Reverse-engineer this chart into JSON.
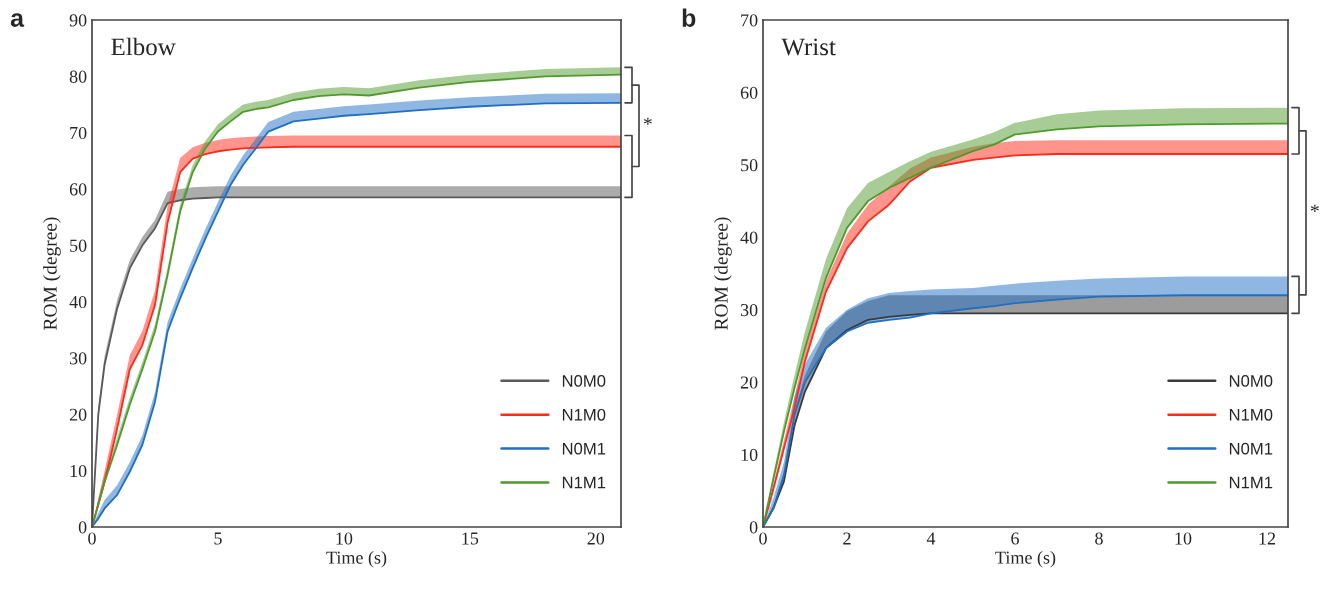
{
  "chart_data": [
    {
      "type": "line",
      "title": "a",
      "xlabel": "Time (s)",
      "ylabel": "ROM (degree)",
      "annotations": [
        "Elbow",
        "*"
      ],
      "xlim": [
        0,
        21
      ],
      "xticks": [
        0,
        5,
        10,
        15,
        20
      ],
      "ylim": [
        0,
        90
      ],
      "yticks": [
        0,
        10,
        20,
        30,
        40,
        50,
        60,
        70,
        80,
        90
      ],
      "legend": "bottom right",
      "grid": false,
      "x": [
        0,
        0.25,
        0.5,
        1,
        1.5,
        2,
        2.5,
        3,
        3.5,
        4,
        4.5,
        5,
        5.5,
        6,
        6.5,
        7,
        8,
        9,
        10,
        11,
        13,
        15,
        18,
        21
      ],
      "series": [
        {
          "name": "N0M0",
          "color": "#595959",
          "values": [
            0,
            20,
            28.8,
            38.8,
            45.9,
            50,
            53,
            57.5,
            58,
            58.3,
            58.4,
            58.5,
            58.5,
            58.5,
            58.5,
            58.5,
            58.5,
            58.5,
            58.5,
            58.5,
            58.5,
            58.5,
            58.5,
            58.5
          ],
          "lower": [
            0,
            20,
            28.8,
            38.8,
            45.9,
            50,
            53,
            57.5,
            58,
            58.3,
            58.4,
            58.5,
            58.5,
            58.5,
            58.5,
            58.5,
            58.5,
            58.5,
            58.5,
            58.5,
            58.5,
            58.5,
            58.5,
            58.5
          ],
          "upper": [
            0,
            21.5,
            30.3,
            40.3,
            47.4,
            51.5,
            54.5,
            59.5,
            60,
            60.3,
            60.4,
            60.5,
            60.5,
            60.5,
            60.5,
            60.5,
            60.5,
            60.5,
            60.5,
            60.5,
            60.5,
            60.5,
            60.5,
            60.5
          ]
        },
        {
          "name": "N1M0",
          "color": "#ff2a1a",
          "values": [
            0,
            4,
            8,
            17.5,
            28,
            32.3,
            39.4,
            54,
            63,
            65.4,
            66.2,
            66.7,
            67,
            67.2,
            67.3,
            67.4,
            67.5,
            67.5,
            67.5,
            67.5,
            67.5,
            67.5,
            67.5,
            67.5
          ],
          "lower": [
            0,
            4,
            8,
            17.5,
            28,
            32.3,
            39.4,
            54,
            63,
            65.4,
            66.2,
            66.7,
            67,
            67.2,
            67.3,
            67.4,
            67.5,
            67.5,
            67.5,
            67.5,
            67.5,
            67.5,
            67.5,
            67.5
          ],
          "upper": [
            0,
            5,
            10,
            20,
            30.5,
            34.8,
            42,
            57,
            65.5,
            67.4,
            68.2,
            68.7,
            69,
            69.2,
            69.3,
            69.4,
            69.5,
            69.5,
            69.5,
            69.5,
            69.5,
            69.5,
            69.5,
            69.5
          ]
        },
        {
          "name": "N0M1",
          "color": "#1f6fc4",
          "values": [
            0,
            1.5,
            3.3,
            5.7,
            9.8,
            14.6,
            22.2,
            34.7,
            40.6,
            46,
            51.2,
            56,
            60.7,
            64.3,
            67.2,
            70.2,
            72,
            72.5,
            73,
            73.3,
            74,
            74.6,
            75.2,
            75.3
          ],
          "lower": [
            0,
            1.5,
            3.3,
            5.7,
            9.8,
            14.6,
            22.2,
            34.7,
            40.6,
            46,
            51.2,
            56,
            60.7,
            64.3,
            67.2,
            70.2,
            72,
            72.5,
            73,
            73.3,
            74,
            74.6,
            75.2,
            75.3
          ],
          "upper": [
            0,
            2.5,
            4.8,
            7.4,
            11.5,
            16.3,
            23.9,
            36.4,
            42.3,
            47.7,
            52.9,
            57.7,
            62.4,
            66,
            68.9,
            71.9,
            73.7,
            74.2,
            74.7,
            75,
            75.7,
            76.3,
            76.9,
            77
          ]
        },
        {
          "name": "N1M1",
          "color": "#4f9a2c",
          "values": [
            0,
            4,
            8,
            14.6,
            21.7,
            28,
            34.7,
            44.7,
            56,
            63,
            67.2,
            70.2,
            72,
            73.7,
            74.2,
            74.5,
            75.8,
            76.5,
            76.8,
            76.6,
            78,
            79,
            80,
            80.3
          ],
          "lower": [
            0,
            4,
            8,
            14.6,
            21.7,
            28,
            34.7,
            44.7,
            56,
            63,
            67.2,
            70.2,
            72,
            73.7,
            74.2,
            74.5,
            75.8,
            76.5,
            76.8,
            76.6,
            78,
            79,
            80,
            80.3
          ],
          "upper": [
            0,
            5,
            9.3,
            15.9,
            23,
            29.3,
            36,
            46,
            57.3,
            64.3,
            68.5,
            71.5,
            73.3,
            75,
            75.5,
            75.8,
            77.1,
            77.8,
            78.1,
            77.9,
            79.3,
            80.3,
            81.3,
            81.6
          ]
        }
      ]
    },
    {
      "type": "line",
      "title": "b",
      "xlabel": "Time (s)",
      "ylabel": "ROM (degree)",
      "annotations": [
        "Wrist",
        "*"
      ],
      "xlim": [
        0,
        12.5
      ],
      "xticks": [
        0,
        2,
        4,
        6,
        8,
        10,
        12
      ],
      "ylim": [
        0,
        70
      ],
      "yticks": [
        0,
        10,
        20,
        30,
        40,
        50,
        60,
        70
      ],
      "legend": "bottom right",
      "grid": false,
      "x": [
        0,
        0.25,
        0.5,
        0.75,
        1,
        1.5,
        2,
        2.5,
        3,
        3.5,
        4,
        5,
        5.5,
        6,
        7,
        8,
        10,
        12.5
      ],
      "series": [
        {
          "name": "N0M0",
          "color": "#3a3a3a",
          "values": [
            0,
            2.6,
            6.3,
            14,
            18.7,
            24.7,
            27.2,
            28.6,
            29,
            29.3,
            29.5,
            29.5,
            29.5,
            29.5,
            29.5,
            29.5,
            29.5,
            29.5
          ],
          "lower": [
            0,
            2.6,
            6.3,
            14,
            18.7,
            24.7,
            27.2,
            28.6,
            29,
            29.3,
            29.5,
            29.5,
            29.5,
            29.5,
            29.5,
            29.5,
            29.5,
            29.5
          ],
          "upper": [
            0,
            3,
            7.5,
            16,
            21,
            27,
            29.8,
            31.2,
            32,
            32,
            32,
            32,
            32,
            32,
            32,
            32,
            32,
            32
          ]
        },
        {
          "name": "N1M0",
          "color": "#ff2a1a",
          "values": [
            0,
            5.3,
            10.9,
            16.4,
            22.9,
            32.5,
            38.5,
            42.2,
            44.5,
            47.7,
            49.6,
            50.7,
            51,
            51.3,
            51.5,
            51.5,
            51.5,
            51.5
          ],
          "lower": [
            0,
            5.3,
            10.9,
            16.4,
            22.9,
            32.5,
            38.5,
            42.2,
            44.5,
            47.7,
            49.6,
            50.7,
            51,
            51.3,
            51.5,
            51.5,
            51.5,
            51.5
          ],
          "upper": [
            0,
            6,
            12,
            18,
            24.5,
            34,
            40.5,
            44.5,
            47,
            49.5,
            51,
            52.5,
            53,
            53.3,
            53.4,
            53.4,
            53.4,
            53.4
          ]
        },
        {
          "name": "N0M1",
          "color": "#1f6fc4",
          "values": [
            0,
            2.6,
            7.2,
            15.5,
            20,
            24.7,
            27,
            28.2,
            28.6,
            28.9,
            29.5,
            30.2,
            30.5,
            30.9,
            31.4,
            31.8,
            32,
            32
          ],
          "lower": [
            0,
            2.6,
            7.2,
            15.5,
            20,
            24.7,
            27,
            28.2,
            28.6,
            28.9,
            29.5,
            30.2,
            30.5,
            30.9,
            31.4,
            31.8,
            32,
            32
          ],
          "upper": [
            0,
            4,
            9,
            18,
            22.5,
            27.5,
            30,
            31.6,
            32.3,
            32.6,
            32.8,
            33,
            33.3,
            33.6,
            34,
            34.3,
            34.6,
            34.6
          ]
        },
        {
          "name": "N1M1",
          "color": "#4f9a2c",
          "values": [
            0,
            6.7,
            13.2,
            19.2,
            24.7,
            34.4,
            41.3,
            45,
            46.8,
            48.2,
            49.6,
            51.9,
            52.8,
            54.2,
            54.9,
            55.3,
            55.6,
            55.7
          ],
          "lower": [
            0,
            6.7,
            13.2,
            19.2,
            24.7,
            34.4,
            41.3,
            45,
            46.8,
            48.2,
            49.6,
            51.9,
            52.8,
            54.2,
            54.9,
            55.3,
            55.6,
            55.7
          ],
          "upper": [
            0,
            7.5,
            14.5,
            21,
            27,
            37,
            44,
            47.5,
            49,
            50.5,
            51.8,
            53.5,
            54.5,
            55.8,
            57,
            57.5,
            57.8,
            57.9
          ]
        }
      ]
    }
  ]
}
